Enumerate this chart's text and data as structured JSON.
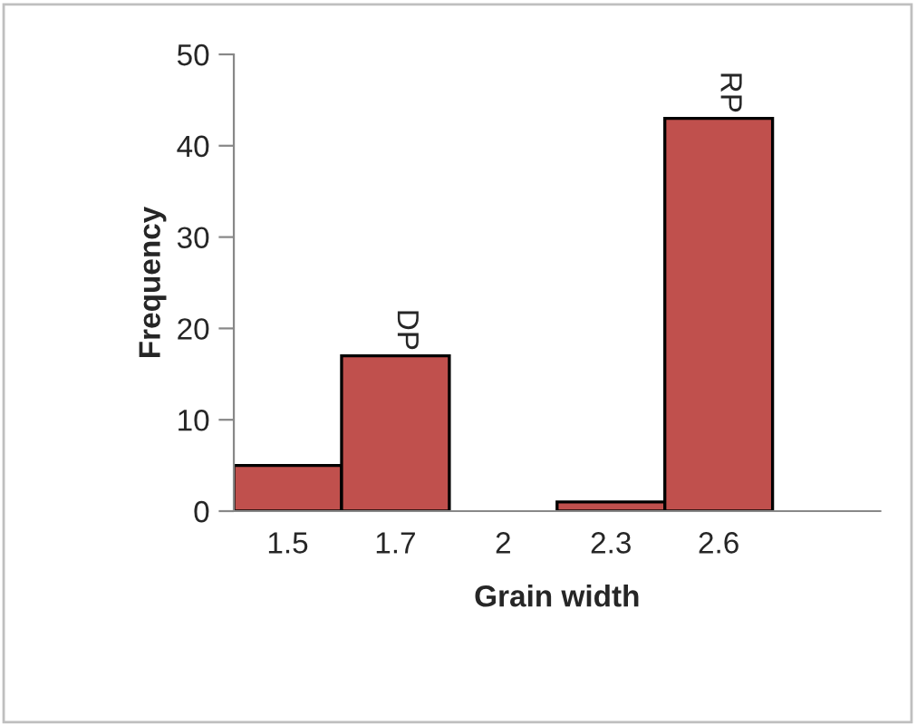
{
  "chart_data": {
    "type": "bar",
    "xlabel": "Grain width",
    "ylabel": "Frequency",
    "categories": [
      "1.5",
      "1.7",
      "2",
      "2.3",
      "2.6",
      null
    ],
    "values": [
      5,
      17,
      0,
      1,
      43,
      null
    ],
    "color": "#c0504d",
    "ylim": [
      0,
      50
    ],
    "yticks": [
      0,
      10,
      20,
      30,
      40,
      50
    ],
    "grid": false,
    "legend": false,
    "annotations": [
      {
        "text": "DP",
        "x": "1.7",
        "y": 17
      },
      {
        "text": "RP",
        "x": "2.6",
        "y": 43
      }
    ]
  }
}
